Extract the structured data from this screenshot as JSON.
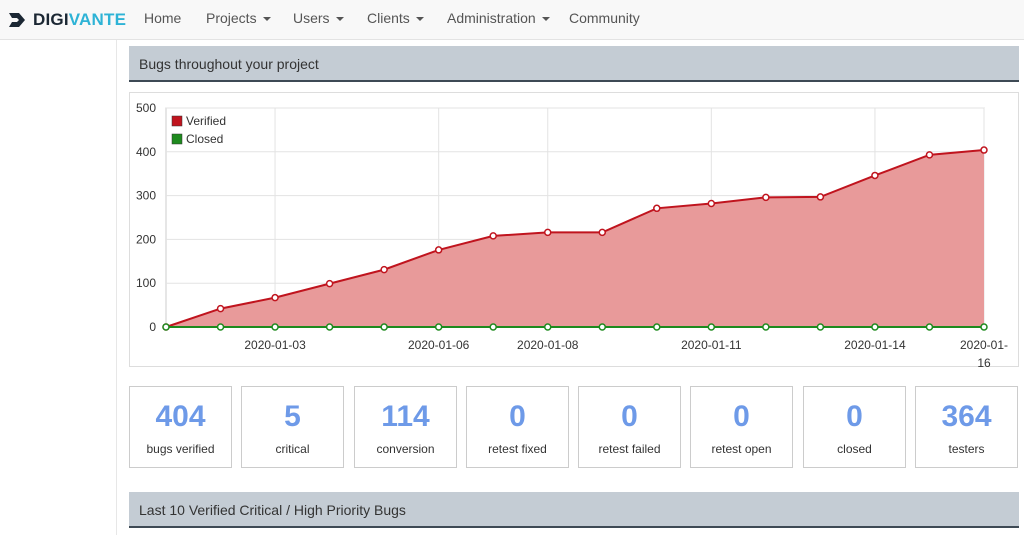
{
  "brand": {
    "part1": "DIGI",
    "part2": "VANTE"
  },
  "nav": [
    {
      "label": "Home",
      "dropdown": false
    },
    {
      "label": "Projects",
      "dropdown": true
    },
    {
      "label": "Users",
      "dropdown": true
    },
    {
      "label": "Clients",
      "dropdown": true
    },
    {
      "label": "Administration",
      "dropdown": true
    },
    {
      "label": "Community",
      "dropdown": false
    }
  ],
  "panel1": {
    "title": "Bugs throughout your project"
  },
  "chart_data": {
    "type": "area",
    "x": [
      "2020-01-01",
      "2020-01-02",
      "2020-01-03",
      "2020-01-04",
      "2020-01-05",
      "2020-01-06",
      "2020-01-07",
      "2020-01-08",
      "2020-01-09",
      "2020-01-10",
      "2020-01-11",
      "2020-01-12",
      "2020-01-13",
      "2020-01-14",
      "2020-01-15",
      "2020-01-16"
    ],
    "x_tick_labels": [
      "2020-01-03",
      "2020-01-06",
      "2020-01-08",
      "2020-01-11",
      "2020-01-14"
    ],
    "x_last_label": [
      "2020-01-",
      "16"
    ],
    "ylim": [
      0,
      500
    ],
    "yticks": [
      0,
      100,
      200,
      300,
      400,
      500
    ],
    "grid": true,
    "legend_placement": "top-left",
    "series": [
      {
        "name": "Verified",
        "color": "#c0141e",
        "fill": "#e89a9a",
        "values": [
          0,
          42,
          67,
          99,
          131,
          176,
          208,
          216,
          216,
          271,
          282,
          296,
          297,
          346,
          393,
          404
        ]
      },
      {
        "name": "Closed",
        "color": "#1e8a1e",
        "values": [
          0,
          0,
          0,
          0,
          0,
          0,
          0,
          0,
          0,
          0,
          0,
          0,
          0,
          0,
          0,
          0
        ]
      }
    ]
  },
  "stats": [
    {
      "value": "404",
      "label": "bugs verified"
    },
    {
      "value": "5",
      "label": "critical"
    },
    {
      "value": "114",
      "label": "conversion"
    },
    {
      "value": "0",
      "label": "retest fixed"
    },
    {
      "value": "0",
      "label": "retest failed"
    },
    {
      "value": "0",
      "label": "retest open"
    },
    {
      "value": "0",
      "label": "closed"
    },
    {
      "value": "364",
      "label": "testers"
    }
  ],
  "panel2": {
    "title": "Last 10 Verified Critical / High Priority Bugs"
  }
}
